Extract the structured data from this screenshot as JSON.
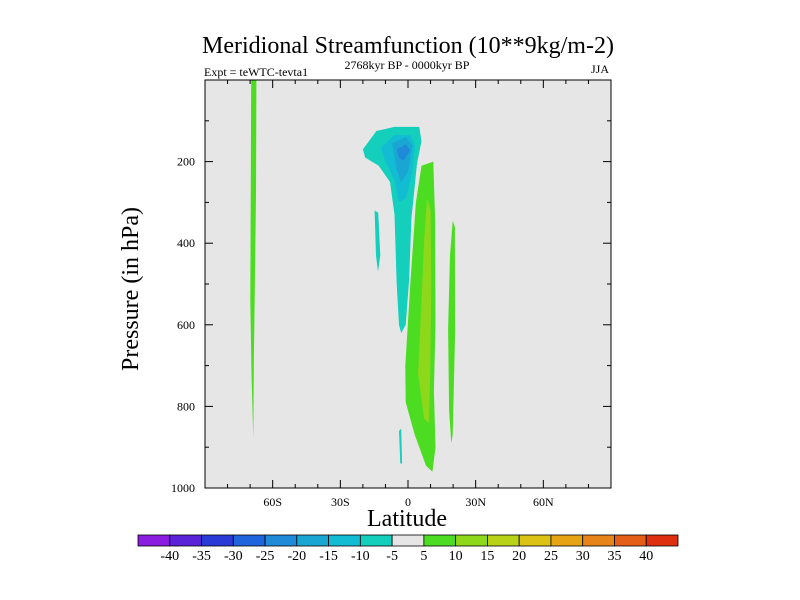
{
  "chart_data": {
    "type": "contour",
    "title": "Meridional Streamfunction (10**9kg/m-2)",
    "left_string": "Expt = teWTC-tevta1",
    "center_string": "2768kyr BP - 0000kyr BP",
    "right_string": "JJA",
    "xlabel": "Latitude",
    "ylabel": "Pressure (in hPa)",
    "xlim": [
      -90,
      90
    ],
    "ylim": [
      0,
      1000
    ],
    "y_inverted": true,
    "x_ticks": [
      {
        "value": -60,
        "label": "60S"
      },
      {
        "value": -30,
        "label": "30S"
      },
      {
        "value": 0,
        "label": "0"
      },
      {
        "value": 30,
        "label": "30N"
      },
      {
        "value": 60,
        "label": "60N"
      }
    ],
    "y_ticks": [
      {
        "value": 200,
        "label": "200"
      },
      {
        "value": 400,
        "label": "400"
      },
      {
        "value": 600,
        "label": "600"
      },
      {
        "value": 800,
        "label": "800"
      },
      {
        "value": 1000,
        "label": "1000"
      }
    ],
    "background_color": "#e6e6e6",
    "colorbar": {
      "labels": [
        "-40",
        "-35",
        "-30",
        "-25",
        "-20",
        "-15",
        "-10",
        "-5",
        "5",
        "10",
        "15",
        "20",
        "25",
        "30",
        "35",
        "40"
      ],
      "colors": [
        "#8a1de0",
        "#5a23d8",
        "#2a3ad6",
        "#1f64dc",
        "#1f8ad8",
        "#19a6d2",
        "#12bcd2",
        "#14cfbb",
        "#e6e6e6",
        "#4cdc22",
        "#8ed81c",
        "#b8d218",
        "#dcc214",
        "#e6a414",
        "#e6841a",
        "#e45e18",
        "#de2f10"
      ]
    },
    "regions": [
      {
        "name": "positive-cell-60S",
        "color": "#4cdc22",
        "points": [
          [
            -69.5,
            0
          ],
          [
            -67.2,
            0
          ],
          [
            -67.4,
            280
          ],
          [
            -68,
            550
          ],
          [
            -68.3,
            680
          ],
          [
            -68.6,
            880
          ],
          [
            -69.4,
            720
          ],
          [
            -69.9,
            540
          ]
        ]
      },
      {
        "name": "negative-cell-outer",
        "color": "#14cfbb",
        "points": [
          [
            -20,
            170
          ],
          [
            -14,
            125
          ],
          [
            -6,
            115
          ],
          [
            5,
            115
          ],
          [
            6,
            150
          ],
          [
            4,
            205
          ],
          [
            1.5,
            340
          ],
          [
            0.5,
            490
          ],
          [
            -1,
            600
          ],
          [
            -3,
            620
          ],
          [
            -4,
            600
          ],
          [
            -5,
            500
          ],
          [
            -6,
            330
          ],
          [
            -8,
            250
          ],
          [
            -13,
            210
          ],
          [
            -19,
            190
          ]
        ]
      },
      {
        "name": "negative-cell-mid",
        "color": "#12bcd2",
        "points": [
          [
            -12,
            165
          ],
          [
            -6,
            135
          ],
          [
            1,
            135
          ],
          [
            3,
            160
          ],
          [
            2,
            225
          ],
          [
            -1,
            290
          ],
          [
            -4,
            300
          ],
          [
            -6,
            245
          ],
          [
            -10,
            200
          ]
        ]
      },
      {
        "name": "negative-cell-inner",
        "color": "#19a6d2",
        "points": [
          [
            -7,
            155
          ],
          [
            -1,
            140
          ],
          [
            2,
            160
          ],
          [
            0,
            225
          ],
          [
            -3,
            250
          ],
          [
            -5,
            220
          ]
        ]
      },
      {
        "name": "negative-cell-core",
        "color": "#1f8ad8",
        "points": [
          [
            -5,
            170
          ],
          [
            -1,
            158
          ],
          [
            1,
            172
          ],
          [
            -2,
            198
          ],
          [
            -4,
            192
          ]
        ]
      },
      {
        "name": "negative-patch-15S",
        "color": "#14cfbb",
        "points": [
          [
            -14.8,
            320
          ],
          [
            -13.2,
            325
          ],
          [
            -12.3,
            430
          ],
          [
            -13.3,
            470
          ],
          [
            -14.2,
            430
          ]
        ]
      },
      {
        "name": "negative-patch-surface",
        "color": "#14cfbb",
        "points": [
          [
            -4,
            860
          ],
          [
            -3,
            855
          ],
          [
            -2.6,
            940
          ],
          [
            -3.4,
            940
          ]
        ]
      },
      {
        "name": "positive-cell-tropics-outer",
        "color": "#4cdc22",
        "points": [
          [
            6,
            210
          ],
          [
            11.2,
            200
          ],
          [
            12,
            340
          ],
          [
            12.2,
            600
          ],
          [
            11.5,
            760
          ],
          [
            12.2,
            900
          ],
          [
            10.8,
            960
          ],
          [
            8,
            945
          ],
          [
            3,
            870
          ],
          [
            -1,
            790
          ],
          [
            -1.2,
            700
          ],
          [
            1,
            500
          ],
          [
            3.5,
            300
          ]
        ]
      },
      {
        "name": "positive-cell-tropics-inner",
        "color": "#8ed81c",
        "points": [
          [
            8.5,
            290
          ],
          [
            10,
            320
          ],
          [
            10.3,
            500
          ],
          [
            9.8,
            740
          ],
          [
            9.2,
            840
          ],
          [
            7.2,
            830
          ],
          [
            4.5,
            720
          ],
          [
            6,
            540
          ],
          [
            7.2,
            390
          ]
        ]
      },
      {
        "name": "positive-patch-20N",
        "color": "#4cdc22",
        "points": [
          [
            19.8,
            345
          ],
          [
            20.8,
            360
          ],
          [
            20.9,
            620
          ],
          [
            19.8,
            870
          ],
          [
            19.2,
            890
          ],
          [
            18.2,
            810
          ],
          [
            17.8,
            610
          ],
          [
            18.6,
            430
          ]
        ]
      }
    ]
  }
}
